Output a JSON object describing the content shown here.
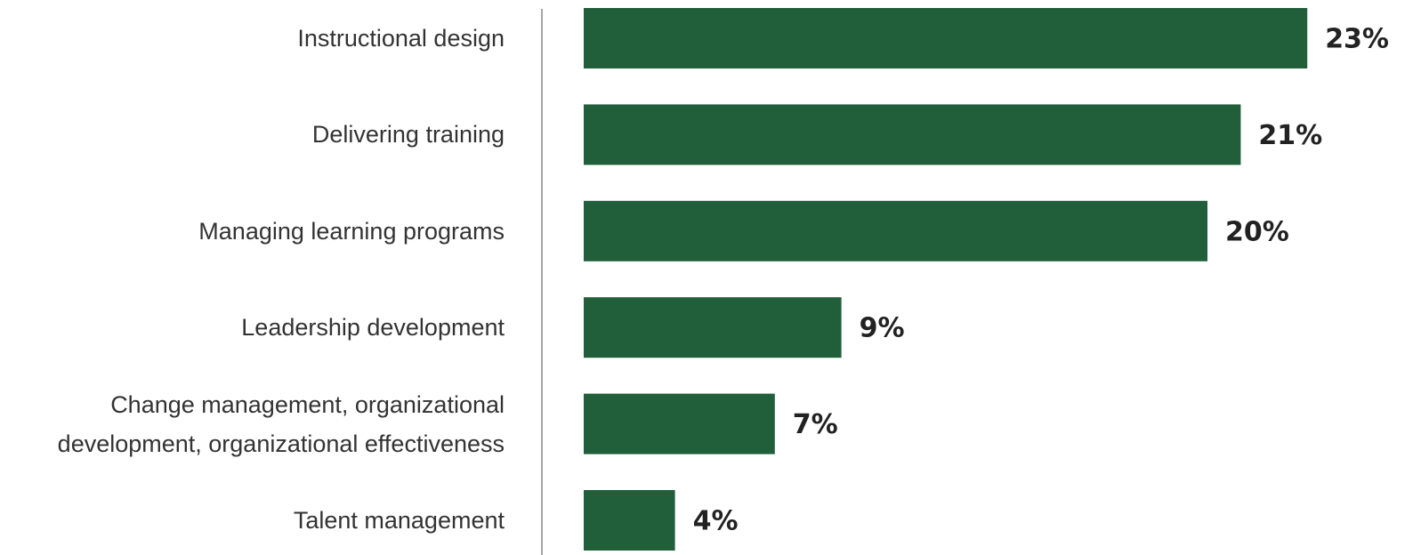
{
  "chart_data": {
    "type": "bar",
    "orientation": "horizontal",
    "categories": [
      "Instructional design",
      "Delivering training",
      "Managing learning programs",
      "Leadership development",
      "Change management, organizational development, organizational effectiveness",
      "Talent management"
    ],
    "values": [
      23,
      21,
      20,
      9,
      7,
      4
    ],
    "value_labels": [
      "23%",
      "21%",
      "20%",
      "9%",
      "7%",
      "4%"
    ],
    "color": "#215e3a",
    "xlim": [
      0,
      25
    ]
  }
}
